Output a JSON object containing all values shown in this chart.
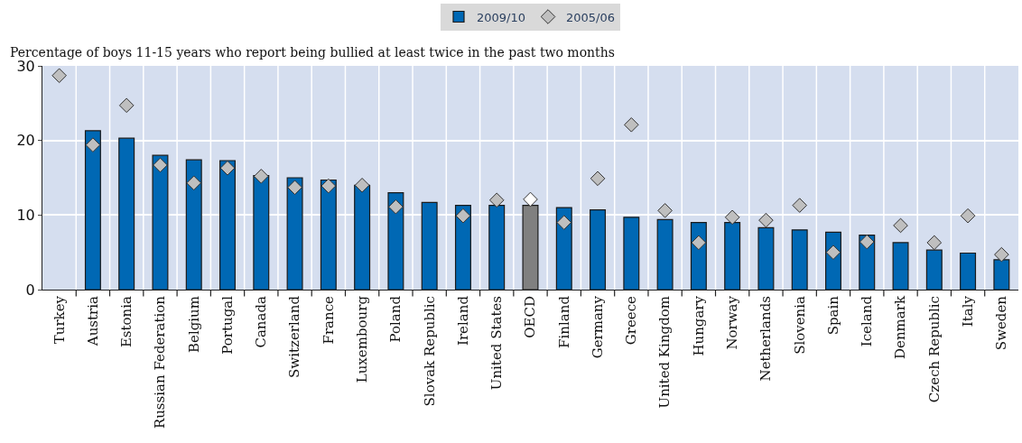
{
  "chart_data": {
    "type": "bar",
    "ylabel": "Percentage of boys 11-15 years who report being bullied at least twice in the past two months",
    "categories": [
      "Turkey",
      "Austria",
      "Estonia",
      "Russian Federation",
      "Belgium",
      "Portugal",
      "Canada",
      "Switzerland",
      "France",
      "Luxembourg",
      "Poland",
      "Slovak Republic",
      "Ireland",
      "United States",
      "OECD",
      "Finland",
      "Germany",
      "Greece",
      "United Kingdom",
      "Hungary",
      "Norway",
      "Netherlands",
      "Slovenia",
      "Spain",
      "Iceland",
      "Denmark",
      "Czech Republic",
      "Italy",
      "Sweden"
    ],
    "series": [
      {
        "name": "2009/10",
        "colors": [
          "#0068b4",
          "#0068b4",
          "#0068b4",
          "#0068b4",
          "#0068b4",
          "#0068b4",
          "#0068b4",
          "#0068b4",
          "#0068b4",
          "#0068b4",
          "#0068b4",
          "#0068b4",
          "#0068b4",
          "#0068b4",
          "#808080",
          "#0068b4",
          "#0068b4",
          "#0068b4",
          "#0068b4",
          "#0068b4",
          "#0068b4",
          "#0068b4",
          "#0068b4",
          "#0068b4",
          "#0068b4",
          "#0068b4",
          "#0068b4",
          "#0068b4",
          "#0068b4"
        ],
        "values": [
          null,
          21.3,
          20.3,
          18.0,
          17.4,
          17.3,
          15.3,
          15.0,
          14.7,
          14.0,
          13.0,
          11.7,
          11.3,
          11.3,
          11.3,
          11.0,
          10.7,
          9.7,
          9.4,
          9.0,
          9.0,
          8.3,
          8.0,
          7.7,
          7.3,
          6.3,
          5.3,
          4.9,
          4.0
        ]
      },
      {
        "name": "2005/06",
        "type": "scatter",
        "marker": "diamond",
        "colors": [
          "#bfbfbf",
          "#bfbfbf",
          "#bfbfbf",
          "#bfbfbf",
          "#bfbfbf",
          "#bfbfbf",
          "#bfbfbf",
          "#bfbfbf",
          "#bfbfbf",
          "#bfbfbf",
          "#bfbfbf",
          "#bfbfbf",
          "#bfbfbf",
          "#bfbfbf",
          "#ffffff",
          "#bfbfbf",
          "#bfbfbf",
          "#bfbfbf",
          "#bfbfbf",
          "#bfbfbf",
          "#bfbfbf",
          "#bfbfbf",
          "#bfbfbf",
          "#bfbfbf",
          "#bfbfbf",
          "#bfbfbf",
          "#bfbfbf",
          "#bfbfbf",
          "#bfbfbf"
        ],
        "values": [
          28.7,
          19.4,
          24.7,
          16.7,
          14.3,
          16.3,
          15.2,
          13.7,
          13.9,
          14.0,
          11.1,
          null,
          9.9,
          12.0,
          12.1,
          9.0,
          14.9,
          22.1,
          10.6,
          6.3,
          9.7,
          9.3,
          11.3,
          5.0,
          6.4,
          8.6,
          6.3,
          9.9,
          4.7
        ]
      }
    ],
    "ylim": [
      0,
      30
    ],
    "yticks": [
      0,
      10,
      20,
      30
    ],
    "grid": true,
    "legend": "top"
  }
}
